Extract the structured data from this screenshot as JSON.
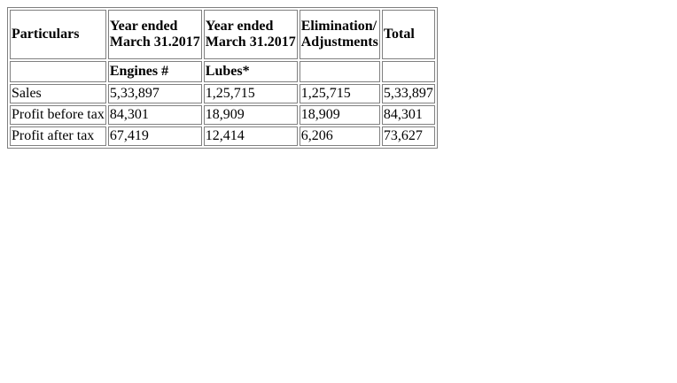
{
  "table": {
    "header": {
      "particulars": "Particulars",
      "col1_line1": "Year ended",
      "col1_line2": "March 31.2017",
      "col2_line1": "Year ended",
      "col2_line2": "March 31.2017",
      "col3_line1": "Elimination/",
      "col3_line2": "Adjustments",
      "col4": "Total"
    },
    "subheader": {
      "col1": "Engines #",
      "col2": "Lubes*"
    },
    "rows": [
      {
        "label": "Sales",
        "engines": "5,33,897",
        "lubes": "1,25,715",
        "elimination": "1,25,715",
        "total": "5,33,897"
      },
      {
        "label": "Profit before tax",
        "engines": "84,301",
        "lubes": "18,909",
        "elimination": "18,909",
        "total": "84,301"
      },
      {
        "label": "Profit after tax",
        "engines": "67,419",
        "lubes": "12,414",
        "elimination": "6,206",
        "total": "73,627"
      }
    ]
  }
}
